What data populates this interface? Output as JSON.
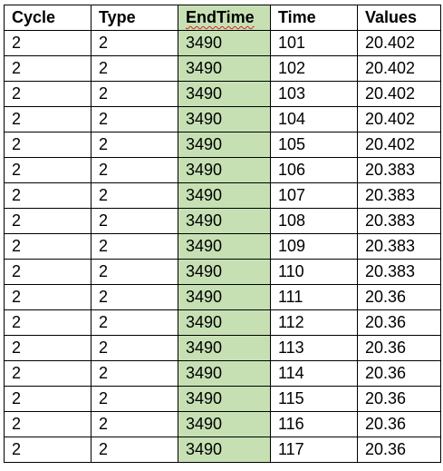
{
  "table": {
    "columns": [
      "Cycle",
      "Type",
      "EndTime",
      "Time",
      "Values"
    ],
    "highlight_color": "#c6e0b4",
    "spellcheck_color": "#e02020",
    "rows": [
      [
        "2",
        "2",
        "3490",
        "101",
        "20.402"
      ],
      [
        "2",
        "2",
        "3490",
        "102",
        "20.402"
      ],
      [
        "2",
        "2",
        "3490",
        "103",
        "20.402"
      ],
      [
        "2",
        "2",
        "3490",
        "104",
        "20.402"
      ],
      [
        "2",
        "2",
        "3490",
        "105",
        "20.402"
      ],
      [
        "2",
        "2",
        "3490",
        "106",
        "20.383"
      ],
      [
        "2",
        "2",
        "3490",
        "107",
        "20.383"
      ],
      [
        "2",
        "2",
        "3490",
        "108",
        "20.383"
      ],
      [
        "2",
        "2",
        "3490",
        "109",
        "20.383"
      ],
      [
        "2",
        "2",
        "3490",
        "110",
        "20.383"
      ],
      [
        "2",
        "2",
        "3490",
        "111",
        "20.36"
      ],
      [
        "2",
        "2",
        "3490",
        "112",
        "20.36"
      ],
      [
        "2",
        "2",
        "3490",
        "113",
        "20.36"
      ],
      [
        "2",
        "2",
        "3490",
        "114",
        "20.36"
      ],
      [
        "2",
        "2",
        "3490",
        "115",
        "20.36"
      ],
      [
        "2",
        "2",
        "3490",
        "116",
        "20.36"
      ],
      [
        "2",
        "2",
        "3490",
        "117",
        "20.36"
      ]
    ]
  }
}
